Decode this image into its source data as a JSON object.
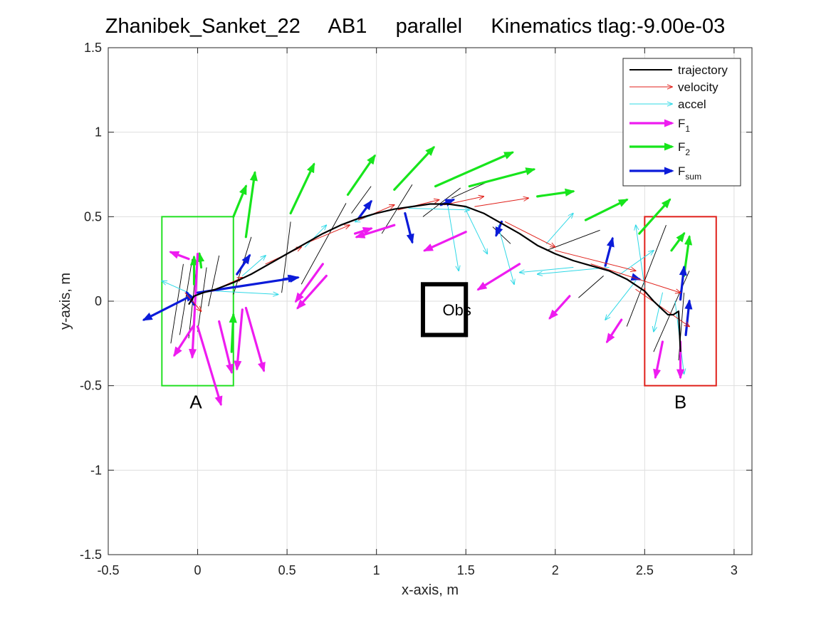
{
  "chart_data": {
    "type": "line",
    "title": "Zhanibek_Sanket_22     AB1     parallel     Kinematics tlag:-9.00e-03",
    "xlabel": "x-axis, m",
    "ylabel": "y-axis, m",
    "xlim": [
      -0.5,
      3.1
    ],
    "ylim": [
      -1.5,
      1.5
    ],
    "x_ticks": [
      -0.5,
      0,
      0.5,
      1,
      1.5,
      2,
      2.5,
      3
    ],
    "x_tick_labels": [
      "-0.5",
      "0",
      "0.5",
      "1",
      "1.5",
      "2",
      "2.5",
      "3"
    ],
    "y_ticks": [
      -1.5,
      -1,
      -0.5,
      0,
      0.5,
      1,
      1.5
    ],
    "y_tick_labels": [
      "-1.5",
      "-1",
      "-0.5",
      "0",
      "0.5",
      "1",
      "1.5"
    ],
    "grid": true,
    "legend_position": "top-right",
    "legend": [
      {
        "label": "trajectory",
        "sub": "",
        "color": "#000000",
        "style": "line"
      },
      {
        "label": "velocity",
        "sub": "",
        "color": "#e0211b",
        "style": "thin-arrow"
      },
      {
        "label": "accel",
        "sub": "",
        "color": "#2fd8e6",
        "style": "thin-arrow"
      },
      {
        "label": "F",
        "sub": "1",
        "color": "#ee1cf0",
        "style": "thick-arrow"
      },
      {
        "label": "F",
        "sub": "2",
        "color": "#17e51c",
        "style": "thick-arrow"
      },
      {
        "label": "F",
        "sub": "sum",
        "color": "#0b1bd9",
        "style": "thick-arrow"
      }
    ],
    "annotations": {
      "A": {
        "text": "A",
        "x": -0.01,
        "y": -0.6
      },
      "B": {
        "text": "B",
        "x": 2.7,
        "y": -0.6
      },
      "Obs": {
        "text": "Obs",
        "x": 1.45,
        "y": -0.05
      }
    },
    "regions": [
      {
        "name": "start-box",
        "x": [
          -0.2,
          0.2
        ],
        "y": [
          -0.5,
          0.5
        ],
        "color": "#22e022"
      },
      {
        "name": "target-box",
        "x": [
          2.5,
          2.9
        ],
        "y": [
          -0.5,
          0.5
        ],
        "color": "#e0211b"
      },
      {
        "name": "obstacle",
        "x": [
          1.26,
          1.5
        ],
        "y": [
          -0.2,
          0.1
        ],
        "color": "#000000"
      }
    ],
    "trajectory": {
      "x": [
        -0.05,
        -0.02,
        0.03,
        0.1,
        0.2,
        0.3,
        0.4,
        0.5,
        0.6,
        0.7,
        0.8,
        0.9,
        1.0,
        1.1,
        1.2,
        1.3,
        1.4,
        1.5,
        1.6,
        1.7,
        1.8,
        1.9,
        2.0,
        2.1,
        2.2,
        2.3,
        2.4,
        2.5,
        2.55,
        2.6,
        2.63,
        2.66,
        2.69,
        2.7
      ],
      "y": [
        -0.02,
        0.03,
        0.05,
        0.07,
        0.11,
        0.16,
        0.22,
        0.28,
        0.34,
        0.4,
        0.45,
        0.49,
        0.52,
        0.545,
        0.56,
        0.575,
        0.575,
        0.56,
        0.52,
        0.46,
        0.4,
        0.33,
        0.28,
        0.24,
        0.21,
        0.18,
        0.13,
        0.06,
        0.0,
        -0.05,
        -0.08,
        -0.08,
        -0.06,
        -0.3
      ]
    },
    "vectors": {
      "velocity": [
        [
          0.08,
          0.06,
          0.25,
          0.14
        ],
        [
          0.38,
          0.22,
          0.58,
          0.32
        ],
        [
          0.6,
          0.34,
          0.85,
          0.45
        ],
        [
          0.9,
          0.48,
          1.1,
          0.57
        ],
        [
          1.12,
          0.54,
          1.35,
          0.6
        ],
        [
          1.38,
          0.57,
          1.6,
          0.62
        ],
        [
          1.55,
          0.56,
          1.85,
          0.61
        ],
        [
          1.72,
          0.47,
          2.0,
          0.32
        ],
        [
          2.0,
          0.3,
          2.45,
          0.18
        ],
        [
          2.2,
          0.22,
          2.7,
          0.05
        ],
        [
          2.45,
          0.07,
          2.75,
          -0.15
        ],
        [
          -0.07,
          0.05,
          0.02,
          -0.06
        ]
      ],
      "accel": [
        [
          -0.05,
          0.05,
          -0.2,
          0.12
        ],
        [
          0.1,
          0.06,
          0.45,
          0.04
        ],
        [
          0.25,
          0.15,
          0.38,
          0.27
        ],
        [
          0.6,
          0.32,
          0.72,
          0.45
        ],
        [
          1.0,
          0.52,
          0.88,
          0.47
        ],
        [
          1.18,
          0.55,
          1.52,
          0.54
        ],
        [
          1.4,
          0.56,
          1.46,
          0.18
        ],
        [
          1.5,
          0.54,
          1.62,
          0.28
        ],
        [
          1.68,
          0.45,
          1.77,
          0.1
        ],
        [
          2.1,
          0.2,
          1.8,
          0.17
        ],
        [
          2.3,
          0.2,
          1.9,
          0.16
        ],
        [
          1.95,
          0.34,
          2.1,
          0.52
        ],
        [
          2.35,
          0.15,
          2.55,
          0.3
        ],
        [
          2.45,
          0.12,
          2.28,
          -0.11
        ],
        [
          2.6,
          0.05,
          2.55,
          -0.18
        ],
        [
          2.67,
          0.0,
          2.72,
          -0.43
        ],
        [
          2.5,
          0.08,
          2.45,
          0.45
        ]
      ],
      "F1": [
        [
          -0.05,
          0.25,
          -0.15,
          0.29
        ],
        [
          -0.02,
          -0.14,
          -0.13,
          -0.32
        ],
        [
          0.0,
          -0.15,
          0.13,
          -0.61
        ],
        [
          0.12,
          -0.12,
          0.19,
          -0.42
        ],
        [
          0.27,
          -0.04,
          0.37,
          -0.41
        ],
        [
          0.25,
          -0.05,
          0.22,
          -0.4
        ],
        [
          0.7,
          0.22,
          0.55,
          0.0
        ],
        [
          0.72,
          0.15,
          0.56,
          -0.04
        ],
        [
          0.88,
          0.4,
          0.97,
          0.43
        ],
        [
          1.1,
          0.45,
          0.89,
          0.38
        ],
        [
          1.5,
          0.41,
          1.27,
          0.3
        ],
        [
          1.8,
          0.22,
          1.57,
          0.07
        ],
        [
          2.08,
          0.03,
          1.97,
          -0.1
        ],
        [
          2.37,
          -0.11,
          2.29,
          -0.24
        ],
        [
          2.6,
          -0.24,
          2.56,
          -0.45
        ],
        [
          2.7,
          -0.24,
          2.7,
          -0.45
        ],
        [
          0.0,
          0.28,
          -0.03,
          -0.33
        ]
      ],
      "F2": [
        [
          0.2,
          0.5,
          0.27,
          0.68
        ],
        [
          0.27,
          0.38,
          0.32,
          0.76
        ],
        [
          0.52,
          0.52,
          0.65,
          0.81
        ],
        [
          0.84,
          0.63,
          0.99,
          0.86
        ],
        [
          1.1,
          0.66,
          1.32,
          0.91
        ],
        [
          1.33,
          0.68,
          1.76,
          0.88
        ],
        [
          1.52,
          0.68,
          1.88,
          0.78
        ],
        [
          1.9,
          0.62,
          2.1,
          0.65
        ],
        [
          2.17,
          0.48,
          2.4,
          0.6
        ],
        [
          2.47,
          0.4,
          2.64,
          0.6
        ],
        [
          2.65,
          0.3,
          2.72,
          0.4
        ],
        [
          2.72,
          0.15,
          2.75,
          0.38
        ],
        [
          0.19,
          -0.3,
          0.2,
          -0.08
        ],
        [
          -0.02,
          0.1,
          -0.02,
          0.26
        ],
        [
          0.02,
          0.2,
          0.01,
          0.28
        ]
      ],
      "Fsum": [
        [
          -0.04,
          0.03,
          -0.3,
          -0.11
        ],
        [
          0.0,
          0.05,
          0.56,
          0.14
        ],
        [
          0.48,
          0.13,
          0.55,
          0.14
        ],
        [
          0.9,
          0.49,
          0.97,
          0.59
        ],
        [
          1.16,
          0.52,
          1.2,
          0.35
        ],
        [
          1.36,
          0.57,
          1.43,
          0.6
        ],
        [
          1.7,
          0.47,
          1.67,
          0.39
        ],
        [
          2.28,
          0.21,
          2.32,
          0.37
        ],
        [
          2.44,
          0.14,
          2.47,
          0.13
        ],
        [
          2.7,
          0.01,
          2.72,
          0.2
        ],
        [
          2.73,
          -0.2,
          2.75,
          0.0
        ],
        [
          0.22,
          0.16,
          0.29,
          0.27
        ],
        [
          -0.02,
          -0.02,
          -0.06,
          0.05
        ]
      ],
      "traj_lines": [
        [
          -0.15,
          -0.25,
          -0.08,
          0.22
        ],
        [
          -0.1,
          -0.2,
          -0.03,
          0.25
        ],
        [
          -0.05,
          -0.22,
          0.0,
          0.27
        ],
        [
          0.0,
          -0.18,
          0.05,
          0.2
        ],
        [
          0.06,
          -0.03,
          0.12,
          0.27
        ],
        [
          0.2,
          0.04,
          0.3,
          0.38
        ],
        [
          0.47,
          0.05,
          0.52,
          0.47
        ],
        [
          0.58,
          0.1,
          0.83,
          0.58
        ],
        [
          0.86,
          0.52,
          0.97,
          0.68
        ],
        [
          1.03,
          0.4,
          1.2,
          0.69
        ],
        [
          1.26,
          0.5,
          1.47,
          0.67
        ],
        [
          1.42,
          0.61,
          1.63,
          0.71
        ],
        [
          1.65,
          0.44,
          1.75,
          0.34
        ],
        [
          1.95,
          0.3,
          2.25,
          0.42
        ],
        [
          2.13,
          0.02,
          2.27,
          0.15
        ],
        [
          2.4,
          -0.15,
          2.62,
          0.45
        ],
        [
          2.55,
          -0.3,
          2.75,
          0.18
        ],
        [
          2.69,
          -0.35,
          2.72,
          0.05
        ]
      ]
    }
  }
}
